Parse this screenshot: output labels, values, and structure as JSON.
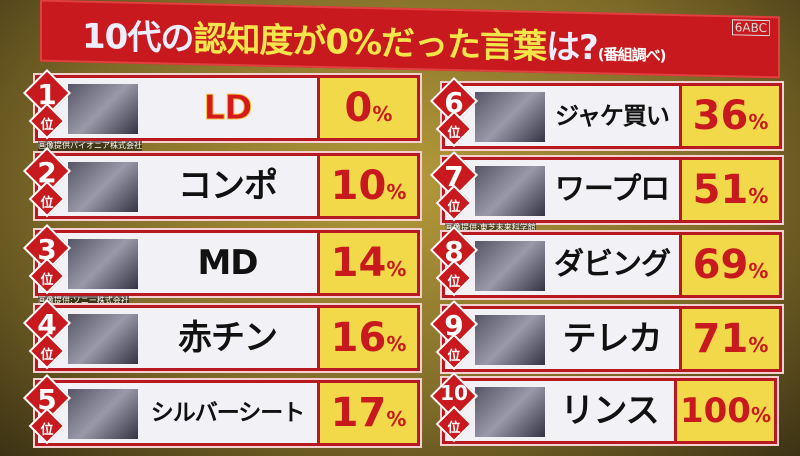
{
  "title": {
    "white_prefix": "10代の",
    "yellow": "認知度が0%だった言葉",
    "white_suffix": "は?",
    "note": "(番組調べ)"
  },
  "channel_logo": "6ABC",
  "rank_suffix": "位",
  "percent_sign": "%",
  "items": [
    {
      "rank": "1",
      "word": "LD",
      "value": "0",
      "caption": "画像提供パイオニア株式会社"
    },
    {
      "rank": "2",
      "word": "コンポ",
      "value": "10",
      "caption": ""
    },
    {
      "rank": "3",
      "word": "MD",
      "value": "14",
      "caption": "画像提供:ソニー株式会社"
    },
    {
      "rank": "4",
      "word": "赤チン",
      "value": "16",
      "caption": ""
    },
    {
      "rank": "5",
      "word": "シルバーシート",
      "value": "17",
      "caption": ""
    },
    {
      "rank": "6",
      "word": "ジャケ買い",
      "value": "36",
      "caption": ""
    },
    {
      "rank": "7",
      "word": "ワープロ",
      "value": "51",
      "caption": "画像提供:東芝未来科学館"
    },
    {
      "rank": "8",
      "word": "ダビング",
      "value": "69",
      "caption": ""
    },
    {
      "rank": "9",
      "word": "テレカ",
      "value": "71",
      "caption": ""
    },
    {
      "rank": "10",
      "word": "リンス",
      "value": "100",
      "caption": ""
    }
  ]
}
